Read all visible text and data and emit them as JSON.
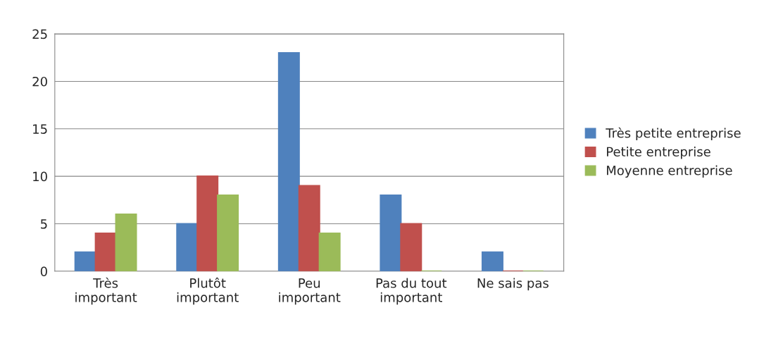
{
  "chart_data": {
    "type": "bar",
    "categories": [
      "Très\nimportant",
      "Plutôt\nimportant",
      "Peu\nimportant",
      "Pas du tout\nimportant",
      "Ne sais pas"
    ],
    "series": [
      {
        "name": "Très petite entreprise",
        "color": "#4f81bd",
        "values": [
          2,
          5,
          23,
          8,
          2
        ]
      },
      {
        "name": "Petite entreprise",
        "color": "#c0504d",
        "values": [
          4,
          10,
          9,
          5,
          0
        ]
      },
      {
        "name": "Moyenne entreprise",
        "color": "#9bbb59",
        "values": [
          6,
          8,
          4,
          0,
          0
        ]
      }
    ],
    "ylim": [
      0,
      25
    ],
    "yticks": [
      0,
      5,
      10,
      15,
      20,
      25
    ],
    "grid": "y",
    "legend": "right"
  }
}
